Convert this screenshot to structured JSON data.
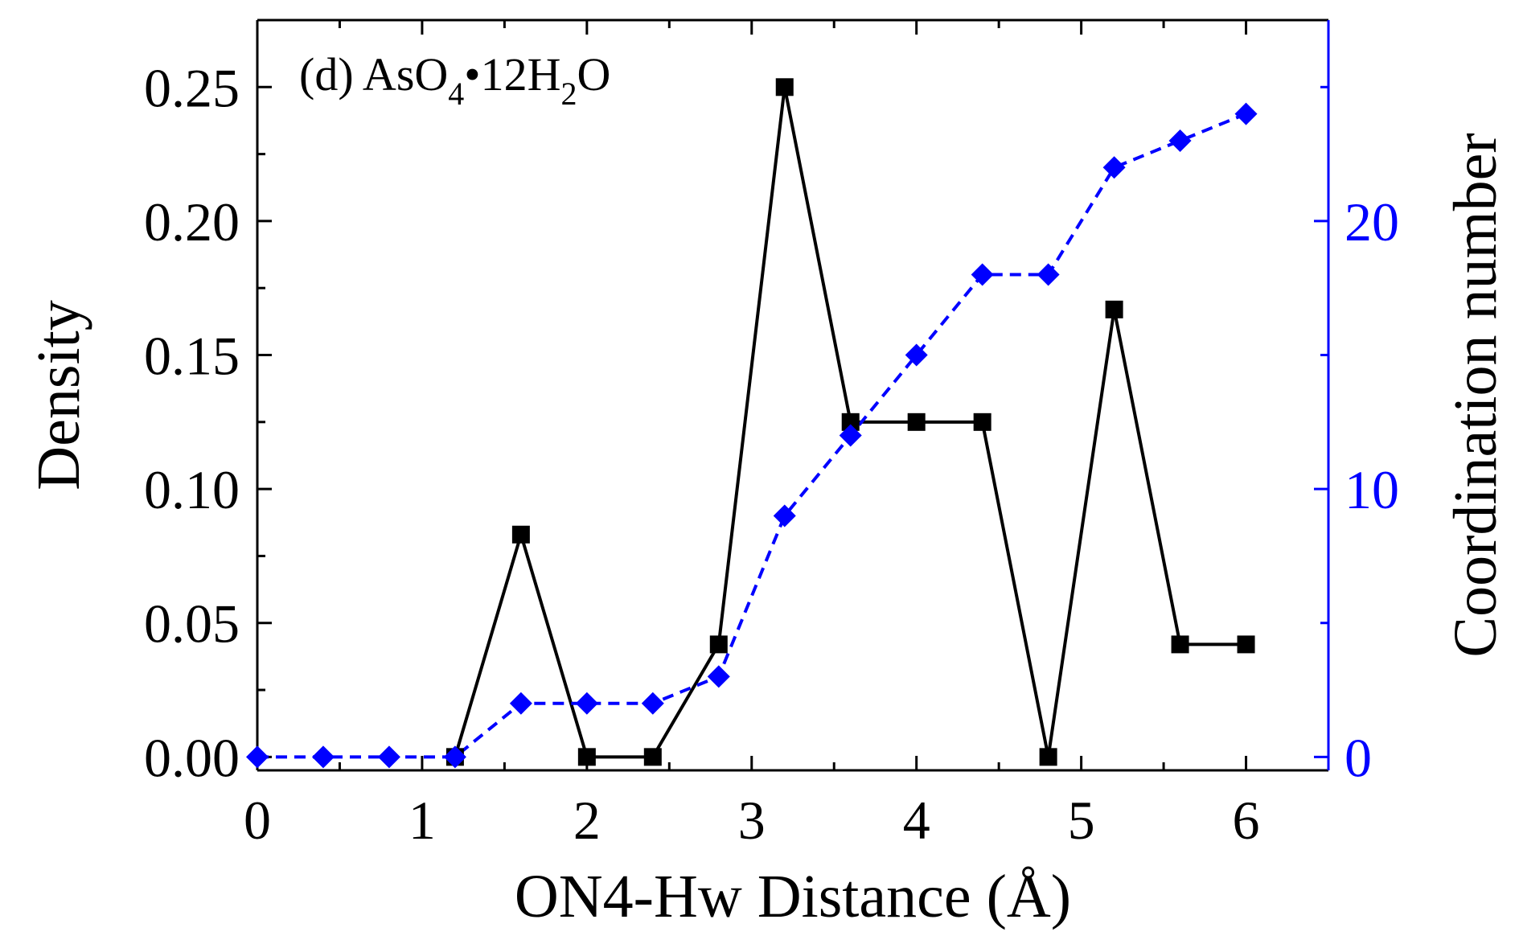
{
  "chart_data": {
    "type": "line",
    "annotation": {
      "label": "(d) AsO",
      "sub1": "4",
      "mid": "•12H",
      "sub2": "2",
      "end": "O"
    },
    "xlabel": "ON4-Hw Distance (Å)",
    "ylabel_left": "Density",
    "ylabel_right": "Coordination number",
    "xlim": [
      0,
      6.5
    ],
    "ylim_left": [
      -0.005,
      0.275
    ],
    "ylim_right": [
      -0.5,
      27.5
    ],
    "x_ticks": [
      "0",
      "1",
      "2",
      "3",
      "4",
      "5",
      "6"
    ],
    "y_ticks_left": [
      "0.00",
      "0.05",
      "0.10",
      "0.15",
      "0.20",
      "0.25"
    ],
    "y_ticks_right": [
      "0",
      "10",
      "20"
    ],
    "grid": false,
    "colors": {
      "density": "#000000",
      "coordination": "#0000ff",
      "axis": "#000000",
      "right_axis": "#0000ff"
    },
    "series": [
      {
        "axis": "left",
        "marker": "square",
        "line": "solid",
        "x": [
          1.2,
          1.6,
          2.0,
          2.4,
          2.8,
          3.2,
          3.6,
          4.0,
          4.4,
          4.8,
          5.2,
          5.6,
          6.0
        ],
        "values": [
          0.0,
          0.083,
          0.0,
          0.0,
          0.042,
          0.25,
          0.125,
          0.125,
          0.125,
          0.0,
          0.167,
          0.042,
          0.042
        ],
        "segments": [
          [
            0,
            1
          ],
          [
            1,
            2
          ],
          [
            2,
            3
          ],
          [
            3,
            4
          ],
          [
            4,
            5
          ],
          [
            5,
            6
          ],
          [
            6,
            7
          ],
          [
            7,
            8
          ],
          [
            8,
            9
          ],
          [
            9,
            10
          ],
          [
            10,
            11
          ],
          [
            11,
            12
          ]
        ]
      },
      {
        "axis": "right",
        "marker": "diamond",
        "line": "dashed",
        "x": [
          0.0,
          0.4,
          0.8,
          1.2,
          1.6,
          2.0,
          2.4,
          2.8,
          3.2,
          3.6,
          4.0,
          4.4,
          4.8,
          5.2,
          5.6,
          6.0
        ],
        "values": [
          0,
          0,
          0,
          0,
          2,
          2,
          2,
          3,
          9,
          12,
          15,
          18,
          18,
          22,
          23,
          24
        ]
      }
    ]
  }
}
